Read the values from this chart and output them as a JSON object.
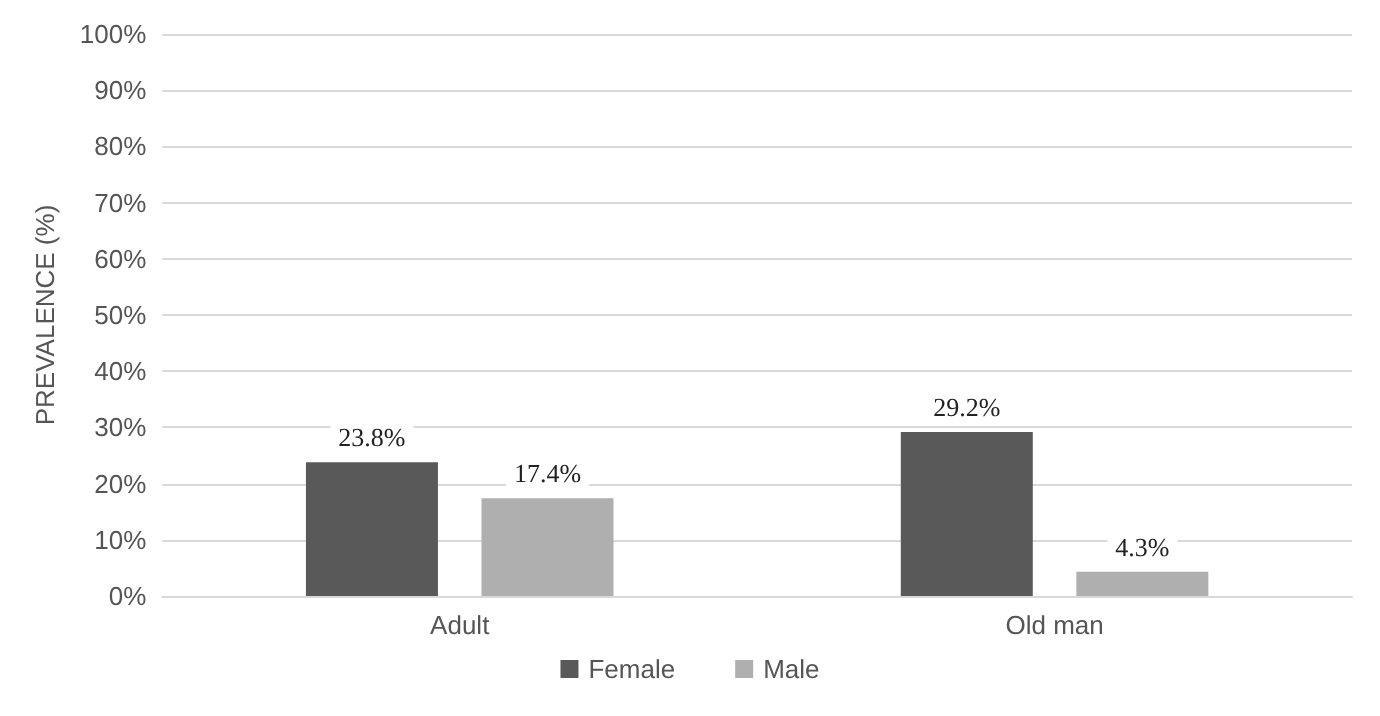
{
  "chart_data": {
    "type": "bar",
    "ylabel": "PREVALENCE (%)",
    "categories": [
      "Adult",
      "Old man"
    ],
    "series": [
      {
        "name": "Female",
        "color": "#595959",
        "values": [
          23.8,
          29.2
        ],
        "value_labels": [
          "23.8%",
          "29.2%"
        ]
      },
      {
        "name": "Male",
        "color": "#afafaf",
        "values": [
          17.4,
          4.3
        ],
        "value_labels": [
          "17.4%",
          "4.3%"
        ]
      }
    ],
    "ylim": [
      0,
      100
    ],
    "yticks": [
      {
        "value": 0,
        "label": "0%"
      },
      {
        "value": 10,
        "label": "10%"
      },
      {
        "value": 20,
        "label": "20%"
      },
      {
        "value": 30,
        "label": "30%"
      },
      {
        "value": 40,
        "label": "40%"
      },
      {
        "value": 50,
        "label": "50%"
      },
      {
        "value": 60,
        "label": "60%"
      },
      {
        "value": 70,
        "label": "70%"
      },
      {
        "value": 80,
        "label": "80%"
      },
      {
        "value": 90,
        "label": "90%"
      },
      {
        "value": 100,
        "label": "100%"
      }
    ],
    "grid": "y",
    "legend": "bottom"
  }
}
